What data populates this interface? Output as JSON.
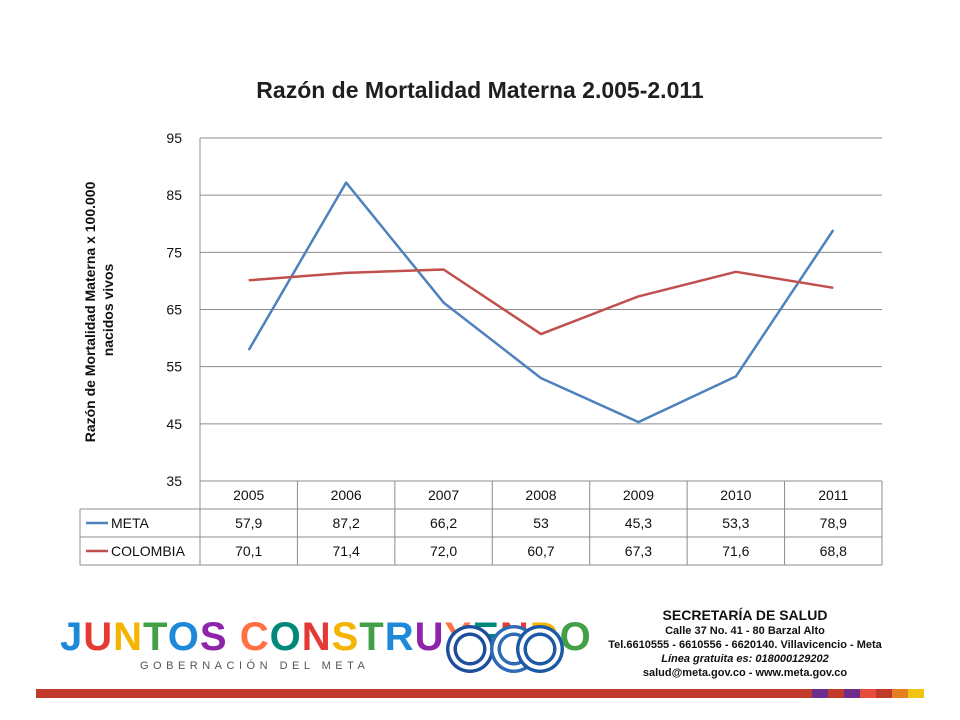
{
  "chart_data": {
    "type": "line",
    "title": "Razón de Mortalidad Materna 2.005-2.011",
    "ylabel": "Razón de Mortalidad Materna x 100.000 nacidos vivos",
    "ylabel_lines": [
      "Razón de Mortalidad Materna x 100.000",
      "nacidos vivos"
    ],
    "xlabel": "",
    "ylim": [
      35,
      95
    ],
    "yticks": [
      35,
      45,
      55,
      65,
      75,
      85,
      95
    ],
    "ytick_labels": [
      "35",
      "45",
      "55",
      "65",
      "75",
      "85",
      "95"
    ],
    "grid": true,
    "legend": "data-table",
    "categories": [
      "2005",
      "2006",
      "2007",
      "2008",
      "2009",
      "2010",
      "2011"
    ],
    "series": [
      {
        "name": "META",
        "color": "#4f81bd",
        "values": [
          57.9,
          87.2,
          66.2,
          53,
          45.3,
          53.3,
          78.9
        ],
        "labels": [
          "57,9",
          "87,2",
          "66,2",
          "53",
          "45,3",
          "53,3",
          "78,9"
        ]
      },
      {
        "name": "COLOMBIA",
        "color": "#c0504d",
        "values": [
          70.1,
          71.4,
          72.0,
          60.7,
          67.3,
          71.6,
          68.8
        ],
        "labels": [
          "70,1",
          "71,4",
          "72,0",
          "60,7",
          "67,3",
          "71,6",
          "68,8"
        ]
      }
    ]
  },
  "footer": {
    "logo_text": "JUNTOS CONSTRUYENDO",
    "logo_letter_colors": [
      "#1e88d9",
      "#e53935",
      "#f4b400",
      "#43a047",
      "#1e88d9",
      "#8e24aa",
      "#ff7043",
      "#00897b",
      "#e53935",
      "#f4b400",
      "#43a047",
      "#1e88d9",
      "#8e24aa",
      "#ff7043",
      "#00897b",
      "#e53935",
      "#f4b400",
      "#43a047",
      "#1e88d9"
    ],
    "logo_subtitle": "GOBERNACIÓN DEL META",
    "seal_colors": [
      "#1e4f9c",
      "#2d6cb5",
      "#1c5aa6"
    ],
    "contact": {
      "title": "SECRETARÍA DE SALUD",
      "address": "Calle 37 No. 41 - 80 Barzal Alto",
      "phones": "Tel.6610555 - 6610556 - 6620140. Villavicencio - Meta",
      "hotline": "Línea gratuita es: 018000129202",
      "web": "salud@meta.gov.co - www.meta.gov.co"
    },
    "bar_colors": [
      "#c0392b",
      "#6d2d8c",
      "#c0392b",
      "#6d2d8c",
      "#e74c3c",
      "#c0392b",
      "#e67e22",
      "#f1c40f"
    ]
  }
}
